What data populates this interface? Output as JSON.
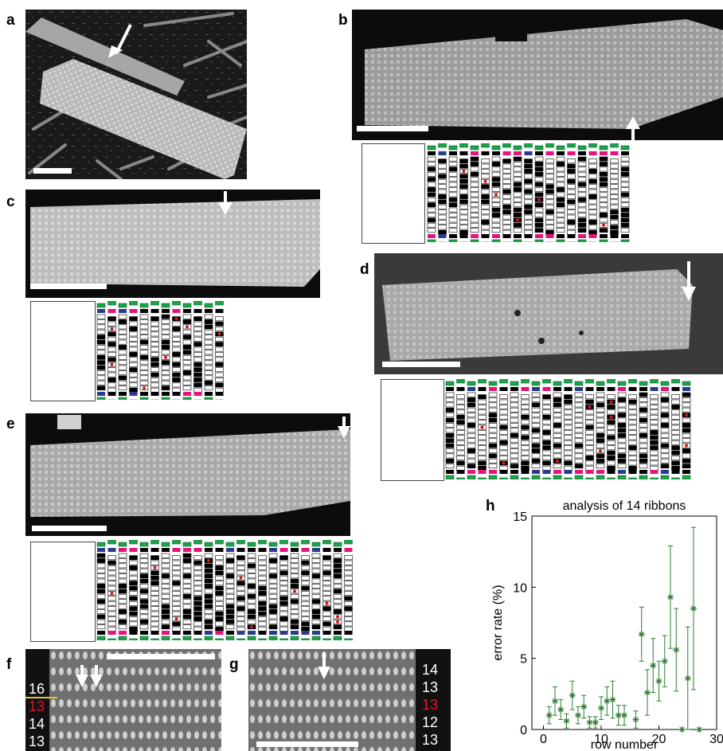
{
  "panels": {
    "a": "a",
    "b": "b",
    "c": "c",
    "d": "d",
    "e": "e",
    "f": "f",
    "g": "g",
    "h": "h"
  },
  "panel_f": {
    "row_labels": [
      "16",
      "13",
      "14",
      "13"
    ],
    "highlight_index": 1
  },
  "panel_g": {
    "row_labels": [
      "14",
      "13",
      "13",
      "12",
      "13"
    ],
    "highlight_index": 2
  },
  "colors": {
    "edge_green": "#1fa24a",
    "tile_black": "#000000",
    "tile_magenta": "#e3147a",
    "tile_blue": "#2a3a8c",
    "error_red": "#d9141e",
    "chart_green": "#2e7d32",
    "label_red": "#e3132b"
  },
  "chart_data": {
    "type": "scatter",
    "title": "analysis of 14 ribbons",
    "xlabel": "row number",
    "ylabel": "error rate (%)",
    "xlim": [
      -2,
      30
    ],
    "ylim": [
      0,
      15
    ],
    "xticks": [
      0,
      10,
      20,
      30
    ],
    "yticks": [
      0,
      5,
      10,
      15
    ],
    "marker": "asterisk",
    "color": "#2e7d32",
    "points": [
      {
        "x": 1,
        "y": 1.0,
        "err": 0.6
      },
      {
        "x": 2,
        "y": 2.0,
        "err": 1.0
      },
      {
        "x": 3,
        "y": 1.4,
        "err": 0.7
      },
      {
        "x": 4,
        "y": 0.6,
        "err": 0.5
      },
      {
        "x": 5,
        "y": 2.4,
        "err": 1.0
      },
      {
        "x": 6,
        "y": 1.0,
        "err": 0.6
      },
      {
        "x": 7,
        "y": 1.6,
        "err": 0.8
      },
      {
        "x": 8,
        "y": 0.5,
        "err": 0.4
      },
      {
        "x": 9,
        "y": 0.5,
        "err": 0.4
      },
      {
        "x": 10,
        "y": 1.5,
        "err": 0.8
      },
      {
        "x": 11,
        "y": 2.0,
        "err": 1.0
      },
      {
        "x": 12,
        "y": 2.1,
        "err": 1.3
      },
      {
        "x": 13,
        "y": 1.0,
        "err": 0.7
      },
      {
        "x": 14,
        "y": 1.0,
        "err": 0.7
      },
      {
        "x": 16,
        "y": 0.7,
        "err": 0.6
      },
      {
        "x": 17,
        "y": 6.7,
        "err": 1.9
      },
      {
        "x": 18,
        "y": 2.6,
        "err": 1.6
      },
      {
        "x": 19,
        "y": 4.5,
        "err": 1.9
      },
      {
        "x": 20,
        "y": 3.4,
        "err": 1.4
      },
      {
        "x": 21,
        "y": 4.8,
        "err": 1.8
      },
      {
        "x": 22,
        "y": 9.3,
        "err": 3.6
      },
      {
        "x": 23,
        "y": 5.6,
        "err": 2.9
      },
      {
        "x": 24,
        "y": 0.0,
        "err": 0.0
      },
      {
        "x": 25,
        "y": 3.6,
        "err": 3.6
      },
      {
        "x": 26,
        "y": 8.5,
        "err": 5.7
      },
      {
        "x": 27,
        "y": 0.0,
        "err": 0.0
      }
    ]
  }
}
